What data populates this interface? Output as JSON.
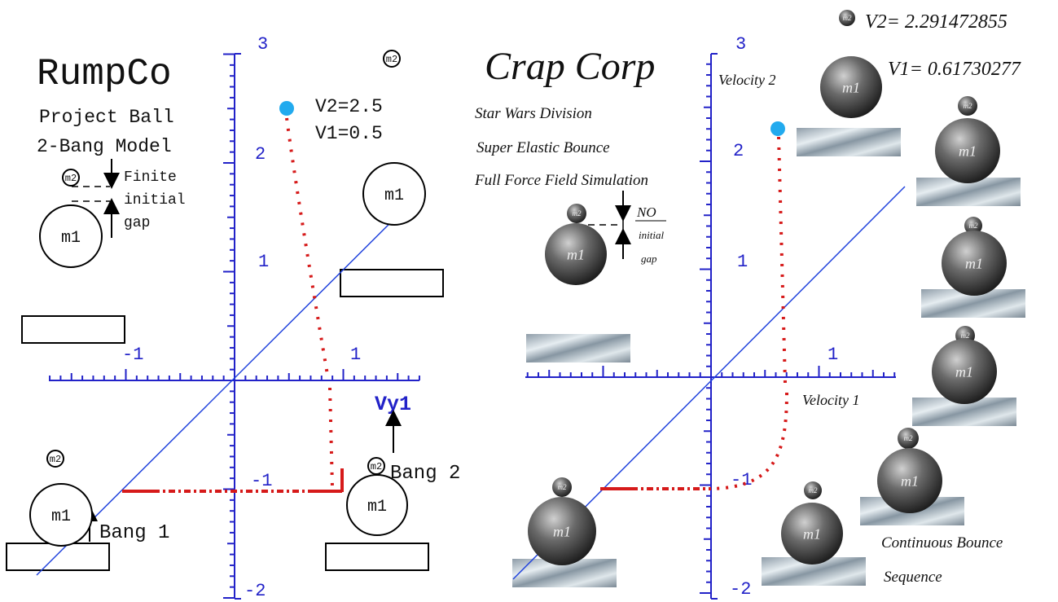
{
  "left": {
    "title": "RumpCo",
    "subtitle": [
      "Project Ball",
      "2-Bang Model"
    ],
    "gap_note": [
      "Finite",
      "initial",
      "gap"
    ],
    "readout": [
      "V2=2.5",
      "V1=0.5"
    ],
    "axis_label": "Vy1",
    "bang_labels": [
      "Bang 2",
      "Bang 1"
    ],
    "y_tick_labels": [
      "3",
      "2",
      "1",
      "-1",
      "-2"
    ],
    "x_tick_labels": [
      "-1",
      "1"
    ],
    "ball_labels": [
      "m2",
      "m1",
      "m2",
      "m1",
      "m2",
      "m1",
      "m2",
      "m1"
    ]
  },
  "right": {
    "title": "Crap Corp",
    "subtitle": [
      "Star Wars Division",
      "Super Elastic Bounce",
      "Full Force Field Simulation"
    ],
    "gap_note": [
      "NO",
      "initial",
      "gap"
    ],
    "readout": [
      "V2= 2.291472855",
      "V1= 0.61730277"
    ],
    "axis_labels": [
      "Velocity 2",
      "Velocity 1"
    ],
    "y_tick_labels": [
      "3",
      "2",
      "1",
      "-1",
      "-2"
    ],
    "x_tick_labels": [
      "1"
    ],
    "caption": [
      "Continuous Bounce",
      "Sequence"
    ],
    "ball_labels": [
      "m2",
      "m1",
      "m2",
      "m1",
      "m2",
      "m1",
      "m2",
      "m1",
      "m2",
      "m1",
      "m2",
      "m1",
      "m2",
      "m1",
      "m2",
      "m1",
      "m2"
    ]
  }
}
